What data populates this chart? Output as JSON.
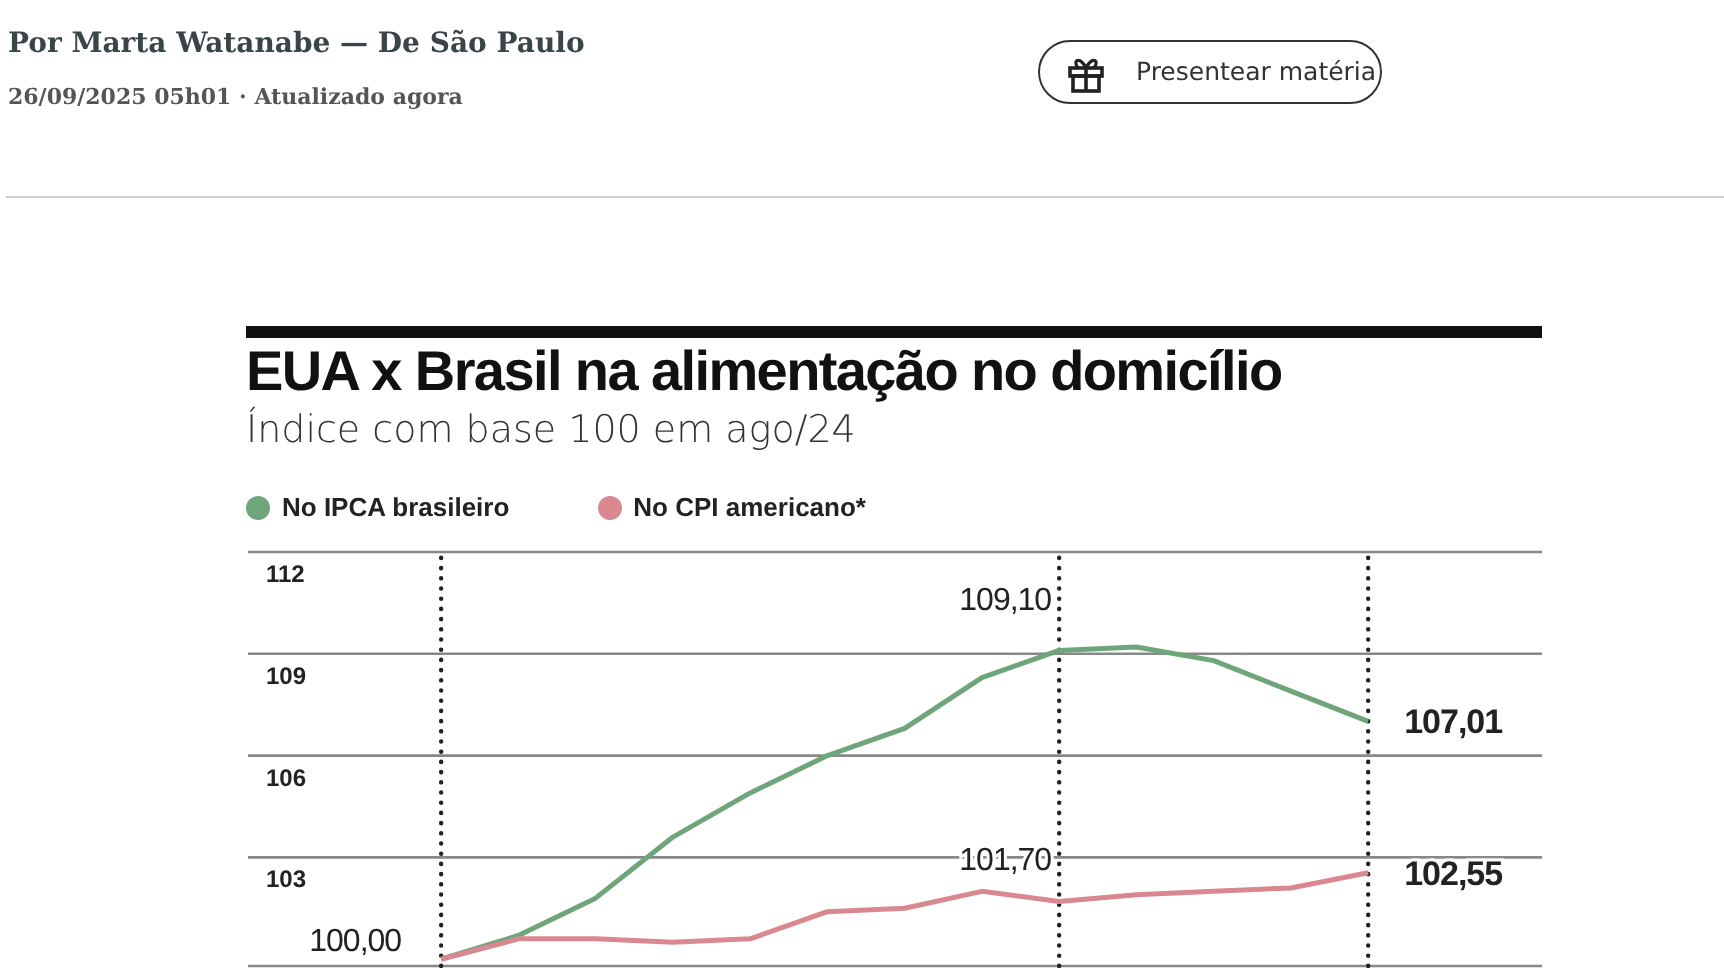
{
  "chart_data": {
    "type": "line",
    "title": "EUA x Brasil na alimentação no domicílio",
    "subtitle": "Índice com base 100 em ago/24",
    "annotations": [
      "Por Marta Watanabe — De São Paulo",
      "26/09/2025 05h01 · Atualizado agora",
      "Presentear matéria"
    ],
    "categories": [
      null,
      null,
      null,
      null,
      null,
      null,
      null,
      null,
      null,
      null,
      null,
      null,
      null
    ],
    "series": [
      {
        "name": "No IPCA brasileiro",
        "color": "#6fa57a",
        "values": [
          100.0,
          100.7,
          101.8,
          103.6,
          104.9,
          106.0,
          106.8,
          108.3,
          109.1,
          109.2,
          108.8,
          107.9,
          107.01
        ],
        "value_labels": [
          "100,00",
          null,
          null,
          null,
          null,
          null,
          null,
          null,
          "109,10",
          null,
          null,
          null,
          "107,01"
        ]
      },
      {
        "name": "No CPI americano*",
        "color": "#d98890",
        "values": [
          100.0,
          100.6,
          100.6,
          100.5,
          100.6,
          101.4,
          101.5,
          102.0,
          101.7,
          101.9,
          102.0,
          102.1,
          102.55
        ],
        "value_labels": [
          null,
          null,
          null,
          null,
          null,
          null,
          null,
          null,
          "101,70",
          null,
          null,
          null,
          "102,55"
        ]
      }
    ],
    "ylim": [
      99.8,
      112
    ],
    "yticks": [
      103,
      106,
      109,
      112
    ],
    "grid": true,
    "legend": "top left",
    "marker": "none",
    "line_style": "solid"
  }
}
